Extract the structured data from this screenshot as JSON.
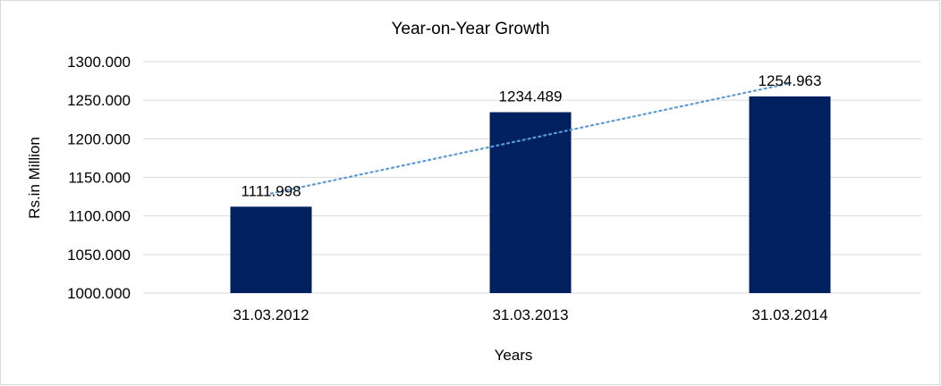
{
  "chart_data": {
    "type": "bar",
    "title": "Year-on-Year Growth",
    "xlabel": "Years",
    "ylabel": "Rs.in Million",
    "categories": [
      "31.03.2012",
      "31.03.2013",
      "31.03.2014"
    ],
    "values": [
      1111.998,
      1234.489,
      1254.963
    ],
    "data_labels": [
      "1111.998",
      "1234.489",
      "1254.963"
    ],
    "ylim": [
      1000,
      1300
    ],
    "yticks": [
      "1000.000",
      "1050.000",
      "1100.000",
      "1150.000",
      "1200.000",
      "1250.000",
      "1300.000"
    ],
    "grid": true,
    "legend": "none",
    "trendline": {
      "type": "linear",
      "style": "dotted"
    },
    "colors": {
      "bar": "#002060",
      "trendline": "#5B9BD5",
      "grid": "#D9D9D9",
      "border": "#D9D9D9"
    }
  }
}
